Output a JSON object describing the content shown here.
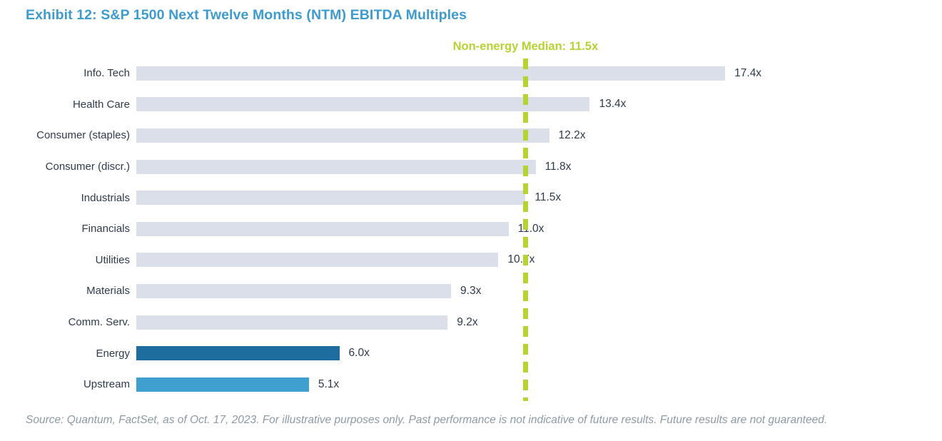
{
  "title": "Exhibit 12: S&P 1500 Next Twelve Months (NTM) EBITDA Multiples",
  "chart_data": {
    "type": "bar",
    "orientation": "horizontal",
    "title": "Exhibit 12: S&P 1500 Next Twelve Months (NTM) EBITDA Multiples",
    "xlabel": "",
    "ylabel": "",
    "axis_max": 19.4,
    "grid": false,
    "legend": "none",
    "categories": [
      "Info. Tech",
      "Health Care",
      "Consumer (staples)",
      "Consumer (discr.)",
      "Industrials",
      "Financials",
      "Utilities",
      "Materials",
      "Comm. Serv.",
      "Energy",
      "Upstream"
    ],
    "values": [
      17.4,
      13.4,
      12.2,
      11.8,
      11.5,
      11.0,
      10.7,
      9.3,
      9.2,
      6.0,
      5.1
    ],
    "value_labels": [
      "17.4x",
      "13.4x",
      "12.2x",
      "11.8x",
      "11.5x",
      "11.0x",
      "10.7x",
      "9.3x",
      "9.2x",
      "6.0x",
      "5.1x"
    ],
    "bar_color_keys": [
      "default",
      "default",
      "default",
      "default",
      "default",
      "default",
      "default",
      "default",
      "default",
      "energy",
      "upstream"
    ],
    "median_line": {
      "label": "Non-energy Median: 11.5x",
      "value": 11.5,
      "style": "dashed-vertical"
    },
    "colors": {
      "default_bar": "#DBDFE9",
      "energy_bar": "#1D6E9E",
      "upstream_bar": "#3FA0CF",
      "median": "#B5D333",
      "title": "#3D9BCE",
      "text": "#2E3B49",
      "source": "#8D9AA4"
    }
  },
  "source_note": "Source: Quantum, FactSet, as of Oct. 17, 2023. For illustrative purposes only. Past performance is not indicative of future results. Future results are not guaranteed."
}
